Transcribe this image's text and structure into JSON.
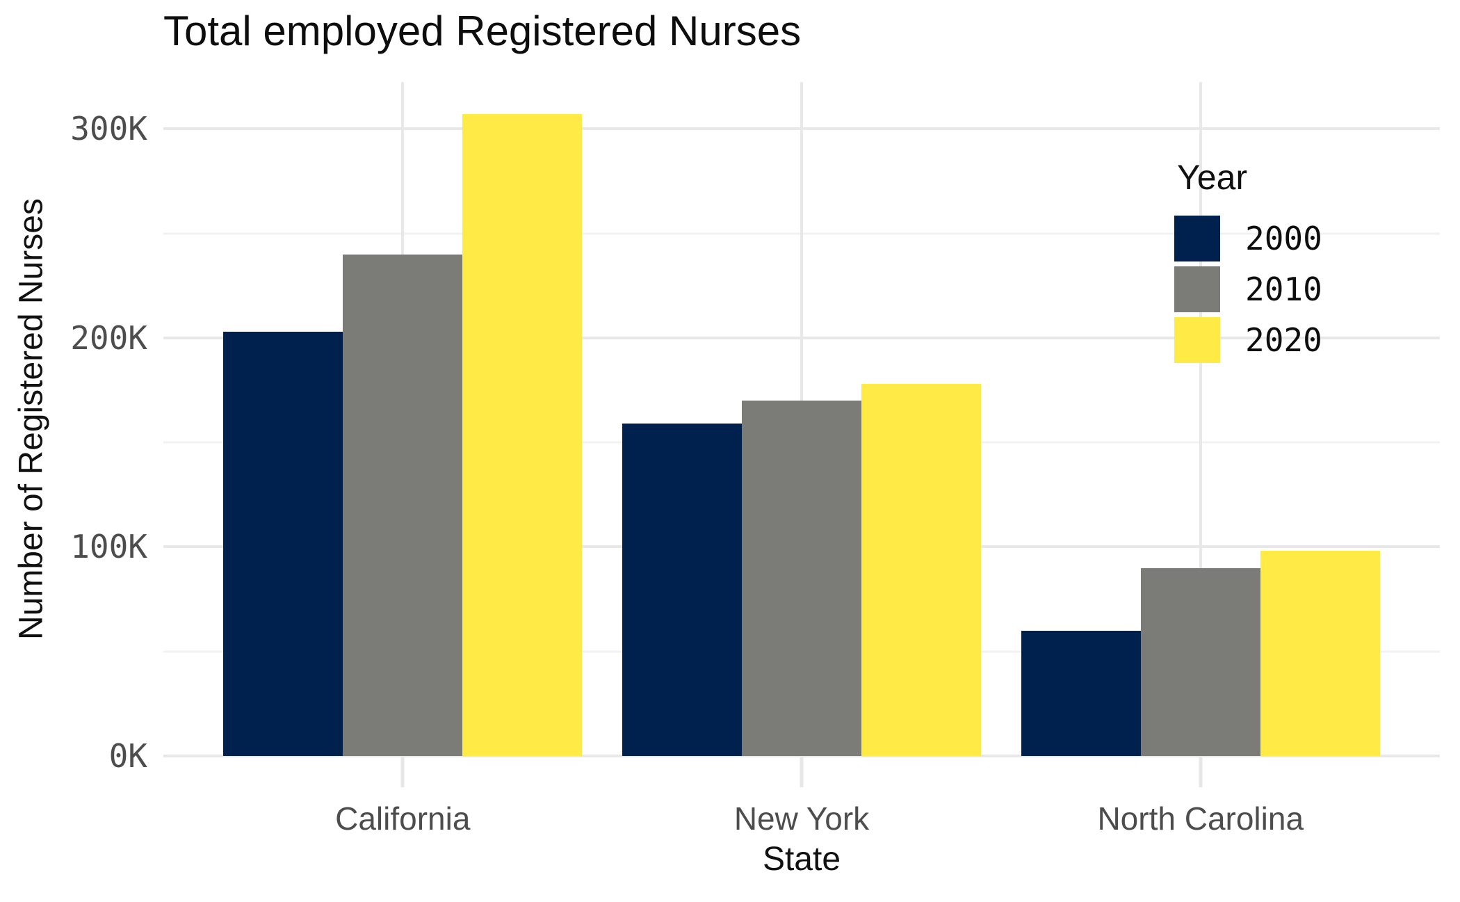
{
  "chart_data": {
    "type": "bar",
    "title": "Total employed Registered Nurses",
    "xlabel": "State",
    "ylabel": "Number of Registered Nurses",
    "categories": [
      "California",
      "New York",
      "North Carolina"
    ],
    "series": [
      {
        "name": "2000",
        "color": "#00204D",
        "values": [
          203000,
          159000,
          60000
        ]
      },
      {
        "name": "2010",
        "color": "#7B7B78",
        "values": [
          240000,
          170000,
          90000
        ]
      },
      {
        "name": "2020",
        "color": "#FFEA46",
        "values": [
          307000,
          178000,
          98000
        ]
      }
    ],
    "legend_title": "Year",
    "legend_position": "inside-top-right",
    "ylim": [
      0,
      322400
    ],
    "yticks": [
      {
        "value": 0,
        "label": "0K"
      },
      {
        "value": 100000,
        "label": "100K"
      },
      {
        "value": 200000,
        "label": "200K"
      },
      {
        "value": 300000,
        "label": "300K"
      }
    ],
    "minor_yticks": [
      50000,
      150000,
      250000
    ],
    "grid": "on"
  },
  "colors": {
    "background": "#FFFFFF",
    "grid_major": "#E8E8E8",
    "grid_minor": "#F2F2F2",
    "tick_mark": "#E7E7E7",
    "tick_label": "#4D4D4D",
    "text": "#111111",
    "series_2000": "#00204D",
    "series_2010": "#7B7B78",
    "series_2020": "#FFEA46"
  }
}
